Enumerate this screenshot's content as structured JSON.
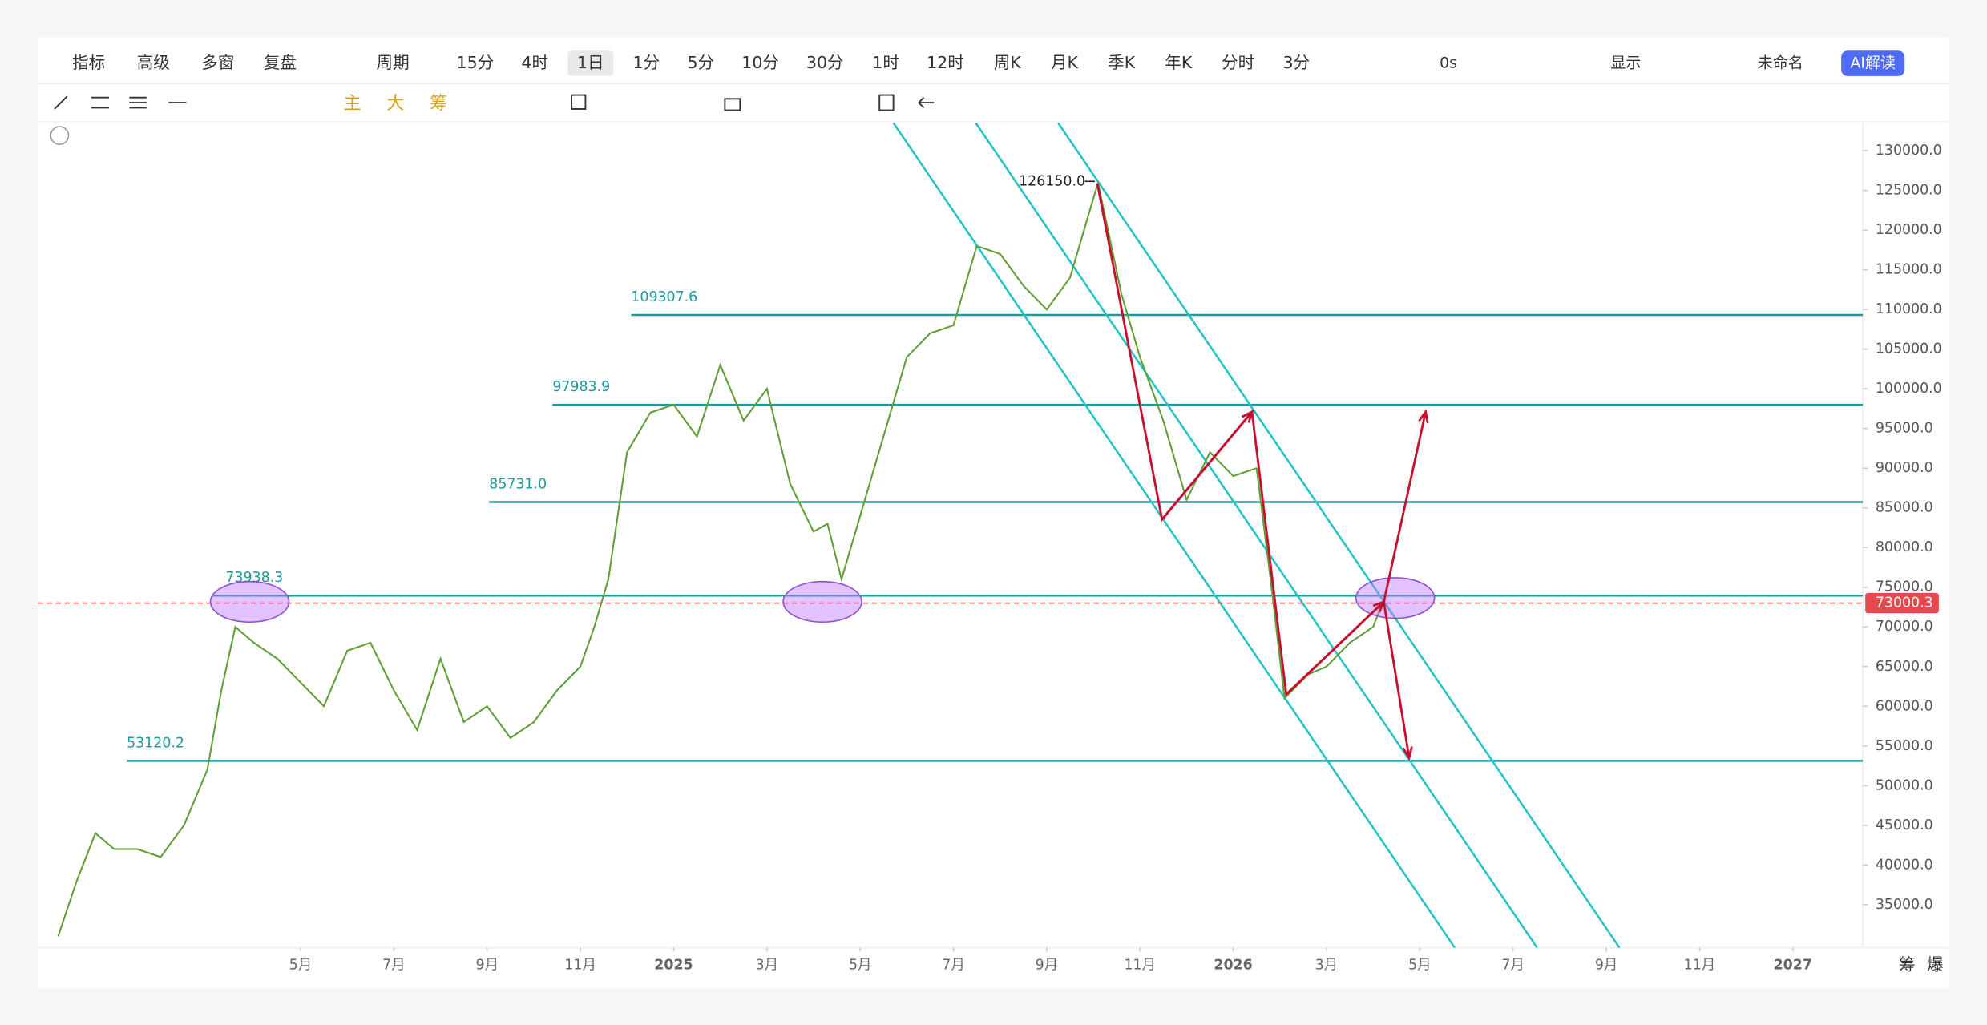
{
  "toolbar": {
    "row1": [
      "指标",
      "高级",
      "多窗",
      "复盘",
      "周期",
      "15分",
      "4时",
      "1日",
      "1分",
      "5分",
      "10分",
      "30分",
      "1时",
      "12时",
      "周K",
      "月K",
      "季K",
      "年K",
      "分时",
      "3分"
    ],
    "right": [
      "0s",
      "显示",
      "未命名",
      "AI解读"
    ],
    "row2": [
      "主",
      "大",
      "筹"
    ]
  },
  "bottom_right": [
    "筹",
    "爆"
  ],
  "chart_data": {
    "type": "line",
    "x": [
      -1.2,
      -0.8,
      -0.4,
      0,
      0.5,
      1,
      1.5,
      2,
      2.3,
      2.6,
      3,
      3.5,
      4,
      4.5,
      5,
      5.5,
      6,
      6.5,
      7,
      7.5,
      8,
      8.5,
      9,
      9.5,
      10,
      10.3,
      10.6,
      11,
      11.5,
      12,
      12.5,
      13,
      13.5,
      14,
      14.5,
      15,
      15.3,
      15.6,
      16,
      16.5,
      17,
      17.5,
      18,
      18.5,
      19,
      19.5,
      20,
      20.5,
      21.1,
      21.6,
      22,
      22.5,
      23,
      23.5,
      24,
      24.5,
      24.8,
      25.1,
      25.6,
      26,
      26.5,
      27,
      27.2
    ],
    "series": [
      {
        "color": "#5f9e34",
        "values": [
          31000,
          38000,
          44000,
          42000,
          42000,
          41000,
          45000,
          52000,
          62000,
          70000,
          68000,
          66000,
          63000,
          60000,
          67000,
          68000,
          62000,
          57000,
          66000,
          58000,
          60000,
          56000,
          58000,
          62000,
          65000,
          70000,
          76000,
          92000,
          97000,
          98000,
          94000,
          103000,
          96000,
          100000,
          88000,
          82000,
          83000,
          76000,
          84000,
          94000,
          104000,
          107000,
          108000,
          118000,
          117000,
          113000,
          110000,
          114000,
          126000,
          112000,
          104000,
          96000,
          86000,
          92000,
          89000,
          90000,
          76000,
          61000,
          64000,
          65000,
          68000,
          70000,
          73000
        ]
      }
    ],
    "xlim": [
      -1.63,
      37.5
    ],
    "xticks": [
      {
        "value": 4,
        "label": "5月"
      },
      {
        "value": 6,
        "label": "7月"
      },
      {
        "value": 8,
        "label": "9月"
      },
      {
        "value": 10,
        "label": "11月"
      },
      {
        "value": 12,
        "label": "2025"
      },
      {
        "value": 14,
        "label": "3月"
      },
      {
        "value": 16,
        "label": "5月"
      },
      {
        "value": 18,
        "label": "7月"
      },
      {
        "value": 20,
        "label": "9月"
      },
      {
        "value": 22,
        "label": "11月"
      },
      {
        "value": 24,
        "label": "2026"
      },
      {
        "value": 26,
        "label": "3月"
      },
      {
        "value": 28,
        "label": "5月"
      },
      {
        "value": 30,
        "label": "7月"
      },
      {
        "value": 32,
        "label": "9月"
      },
      {
        "value": 34,
        "label": "11月"
      },
      {
        "value": 36,
        "label": "2027"
      }
    ],
    "ylim": [
      29572,
      133512
    ],
    "yticks": [
      {
        "value": 35000,
        "label": "35000.0"
      },
      {
        "value": 40000,
        "label": "40000.0"
      },
      {
        "value": 45000,
        "label": "45000.0"
      },
      {
        "value": 50000,
        "label": "50000.0"
      },
      {
        "value": 55000,
        "label": "55000.0"
      },
      {
        "value": 60000,
        "label": "60000.0"
      },
      {
        "value": 65000,
        "label": "65000.0"
      },
      {
        "value": 70000,
        "label": "70000.0"
      },
      {
        "value": 75000,
        "label": "75000.0"
      },
      {
        "value": 80000,
        "label": "80000.0"
      },
      {
        "value": 85000,
        "label": "85000.0"
      },
      {
        "value": 90000,
        "label": "90000.0"
      },
      {
        "value": 95000,
        "label": "95000.0"
      },
      {
        "value": 100000,
        "label": "100000.0"
      },
      {
        "value": 105000,
        "label": "105000.0"
      },
      {
        "value": 110000,
        "label": "110000.0"
      },
      {
        "value": 115000,
        "label": "115000.0"
      },
      {
        "value": 120000,
        "label": "120000.0"
      },
      {
        "value": 125000,
        "label": "125000.0"
      },
      {
        "value": 130000,
        "label": "130000.0"
      }
    ],
    "levels": [
      {
        "value": 109307.6,
        "label": "109307.6"
      },
      {
        "value": 97983.9,
        "label": "97983.9"
      },
      {
        "value": 85731,
        "label": "85731.0"
      },
      {
        "value": 73938.3,
        "label": "73938.3"
      },
      {
        "value": 53120.2,
        "label": "53120.2"
      }
    ],
    "level_color": "#1a9c9c",
    "current_price": {
      "value": 73000.3,
      "label": "73000.3"
    },
    "peak": {
      "value": 126150,
      "label": "126150.0"
    },
    "grid": false
  }
}
